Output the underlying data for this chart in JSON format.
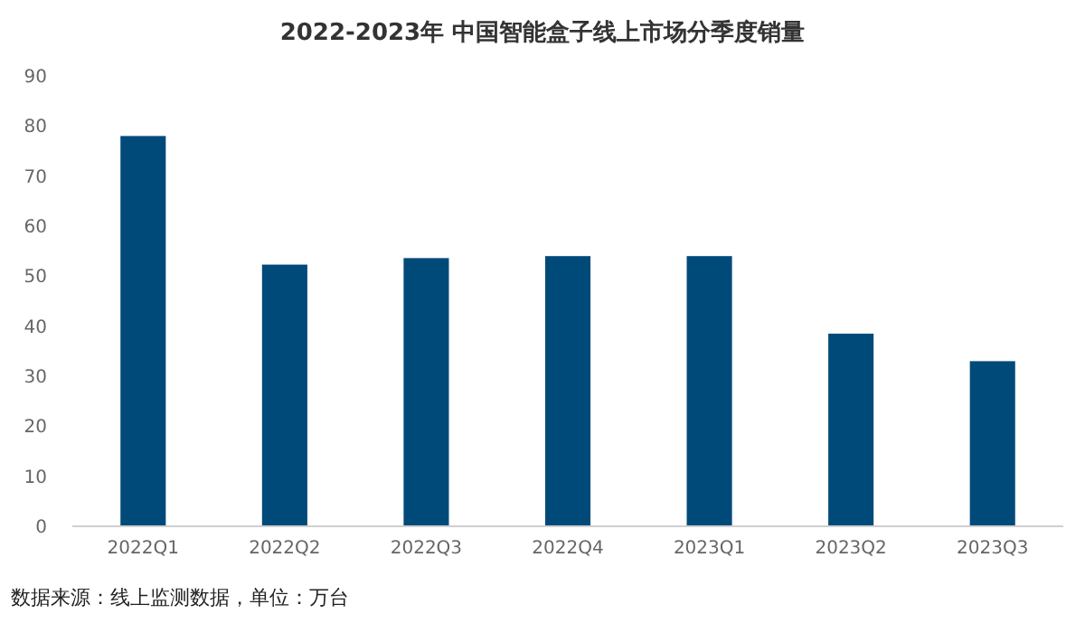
{
  "chart_data": {
    "type": "bar",
    "title": "2022-2023年 中国智能盒子线上市场分季度销量",
    "categories": [
      "2022Q1",
      "2022Q2",
      "2022Q3",
      "2022Q4",
      "2023Q1",
      "2023Q2",
      "2023Q3"
    ],
    "values": [
      78,
      52.3,
      53.6,
      54,
      54,
      38.5,
      33
    ],
    "color": "#004a7a",
    "ylim": [
      0,
      90
    ],
    "yticks": [
      0,
      10,
      20,
      30,
      40,
      50,
      60,
      70,
      80,
      90
    ],
    "grid": false,
    "annotations": [
      "数据来源：线上监测数据，单位：万台"
    ]
  }
}
